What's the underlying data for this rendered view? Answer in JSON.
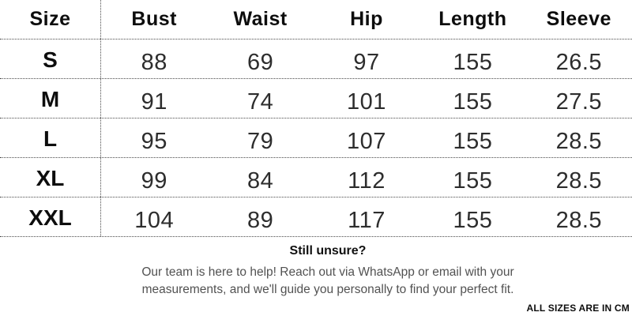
{
  "chart_data": {
    "type": "table",
    "columns": [
      "Size",
      "Bust",
      "Waist",
      "Hip",
      "Length",
      "Sleeve"
    ],
    "rows": [
      {
        "size": "S",
        "bust": "88",
        "waist": "69",
        "hip": "97",
        "length": "155",
        "sleeve": "26.5"
      },
      {
        "size": "M",
        "bust": "91",
        "waist": "74",
        "hip": "101",
        "length": "155",
        "sleeve": "27.5"
      },
      {
        "size": "L",
        "bust": "95",
        "waist": "79",
        "hip": "107",
        "length": "155",
        "sleeve": "28.5"
      },
      {
        "size": "XL",
        "bust": "99",
        "waist": "84",
        "hip": "112",
        "length": "155",
        "sleeve": "28.5"
      },
      {
        "size": "XXL",
        "bust": "104",
        "waist": "89",
        "hip": "117",
        "length": "155",
        "sleeve": "28.5"
      }
    ],
    "unit": "cm",
    "layout": {
      "grid": "dotted-row-separators",
      "vertical_divider_after": "Size"
    }
  },
  "footer": {
    "heading": "Still unsure?",
    "line1": "Our team is here to help! Reach out via WhatsApp or email with your",
    "line2": "measurements, and we'll guide you personally to find your perfect fit.",
    "note": "ALL SIZES ARE IN CM"
  },
  "colors": {
    "background": "#ffffff",
    "heading_text": "#0d0d0d",
    "value_text": "#2d2d2d",
    "muted_text": "#525252",
    "grid_line": "#4a4a4a"
  }
}
